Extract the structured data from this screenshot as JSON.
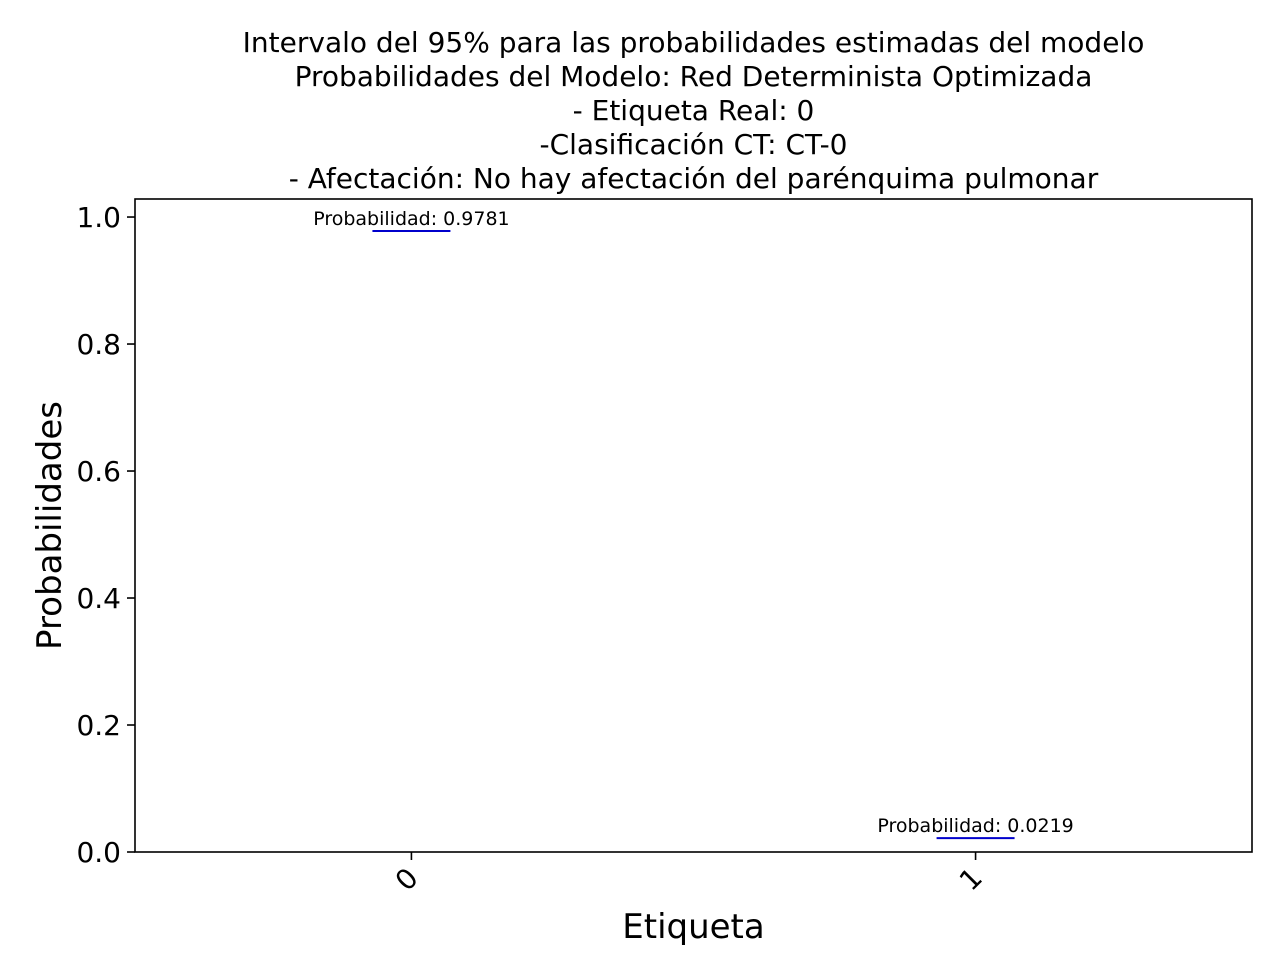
{
  "chart_data": {
    "type": "interval",
    "title": [
      "Intervalo del 95% para las probabilidades estimadas del modelo",
      "Probabilidades del Modelo: Red Determinista Optimizada",
      "- Etiqueta Real: 0",
      "-Clasificación CT: CT-0",
      "- Afectación: No hay afectación del parénquima pulmonar"
    ],
    "xlabel": "Etiqueta",
    "ylabel": "Probabilidades",
    "categories": [
      "0",
      "1"
    ],
    "xlim": [
      -0.49,
      1.49
    ],
    "ylim": [
      0.0,
      1.0284
    ],
    "yticks": [
      0.0,
      0.2,
      0.4,
      0.6,
      0.8,
      1.0
    ],
    "ytick_labels": [
      "0.0",
      "0.2",
      "0.4",
      "0.6",
      "0.8",
      "1.0"
    ],
    "grid": false,
    "series": [
      {
        "values": [
          0.9781,
          0.0219
        ],
        "lower": [
          0.9781,
          0.0219
        ],
        "upper": [
          0.9781,
          0.0219
        ],
        "color": "#0000cc"
      }
    ],
    "annotations": [
      "Probabilidad: 0.9781",
      "Probabilidad: 0.0219"
    ]
  }
}
